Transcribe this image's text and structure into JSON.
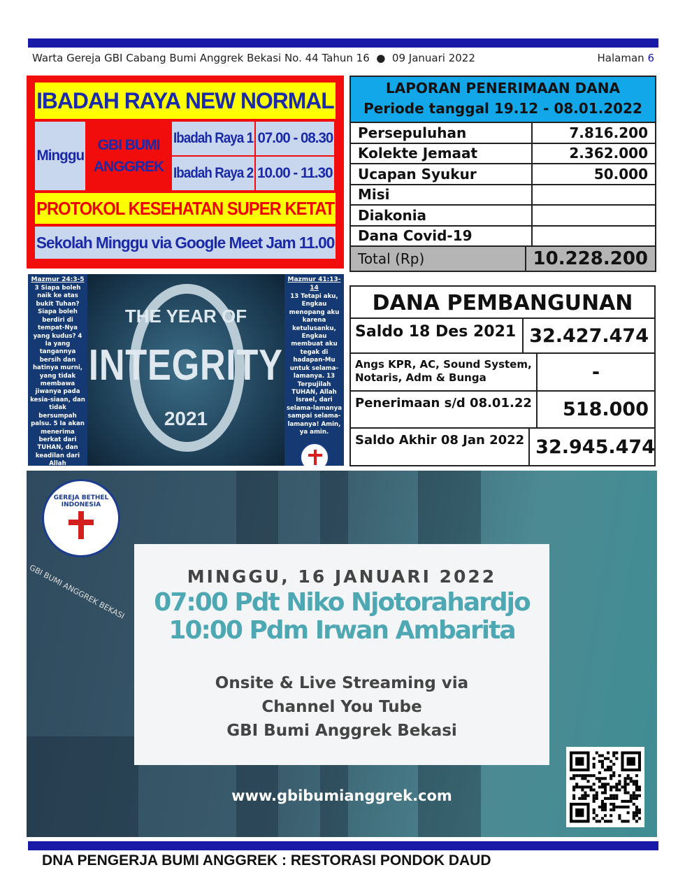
{
  "header": {
    "publication": "Warta Gereja GBI Cabang Bumi Anggrek Bekasi No. 44  Tahun 16",
    "bullet": "●",
    "date": "09 Januari 2022",
    "page_label": "Halaman",
    "page_number": "6"
  },
  "ibadah": {
    "title": "IBADAH RAYA NEW NORMAL",
    "day": "Minggu",
    "services": [
      {
        "name": "Ibadah Raya 1",
        "time": "07.00 - 08.30"
      },
      {
        "name": "Ibadah Raya 2",
        "time": "10.00 - 11.30"
      }
    ],
    "location": "GBI BUMI ANGGREK",
    "protocol": "PROTOKOL KESEHATAN SUPER KETAT",
    "sunday_school": "Sekolah Minggu via Google Meet Jam 11.00"
  },
  "laporan": {
    "title": "LAPORAN PENERIMAAN DANA",
    "period": "Periode tanggal 19.12 - 08.01.2022",
    "rows": [
      {
        "label": "Persepuluhan",
        "value": "7.816.200"
      },
      {
        "label": "Kolekte Jemaat",
        "value": "2.362.000"
      },
      {
        "label": "Ucapan Syukur",
        "value": "50.000"
      },
      {
        "label": "Misi",
        "value": ""
      },
      {
        "label": "Diakonia",
        "value": ""
      },
      {
        "label": "Dana Covid-19",
        "value": ""
      }
    ],
    "total_label": "Total (Rp)",
    "total_value": "10.228.200"
  },
  "integrity": {
    "verse_left_ref": "Mazmur 24:3-5",
    "verse_left": "3 Siapa boleh naik ke atas bukit Tuhan? Siapa boleh berdiri di tempat-Nya yang kudus? 4 Ia yang tangannya bersih dan hatinya murni, yang tidak membawa jiwanya pada kesia-siaan, dan tidak bersumpah palsu. 5 Ia akan menerima berkat dari TUHAN, dan keadilan dari Allah keselamatannya.",
    "year_of": "THE YEAR OF",
    "word": "INTEGRITY",
    "year": "2021",
    "verse_right_ref": "Mazmur 41:13-14",
    "verse_right": "13 Tetapi aku, Engkau menopang aku karena ketulusanku, Engkau membuat aku tegak di hadapan-Mu untuk selama-lamanya. 13 Terpujilah TUHAN, Allah Israel, dari selama-lamanya sampai selama-lamanya! Amin, ya amin.",
    "logo_text": "GEREJA BETHEL INDONESIA"
  },
  "dana": {
    "title": "DANA PEMBANGUNAN",
    "rows": [
      {
        "label": "Saldo 18 Des 2021",
        "value": "32.427.474"
      },
      {
        "label": "Angs KPR, AC, Sound System, Notaris, Adm & Bunga",
        "value": "-"
      },
      {
        "label": "Penerimaan s/d 08.01.22",
        "value": "518.000"
      },
      {
        "label": "Saldo Akhir 08 Jan 2022",
        "value": "32.945.474"
      }
    ]
  },
  "banner": {
    "logo_text": "GEREJA BETHEL INDONESIA",
    "logo_sub": "GBI BUMI ANGGREK BEKASI",
    "date": "MINGGU, 16 JANUARI 2022",
    "preachers": [
      "07:00 Pdt Niko Njotorahardjo",
      "10:00 Pdm Irwan Ambarita"
    ],
    "info": [
      "Onsite & Live Streaming via",
      "Channel You Tube",
      "GBI Bumi Anggrek Bekasi"
    ],
    "url": "www.gbibumianggrek.com"
  },
  "footer": "DNA PENGERJA BUMI ANGGREK : RESTORASI PONDOK DAUD",
  "colors": {
    "bar": "#1a1aa8",
    "red": "#f20d0d",
    "yellow": "#ffff00",
    "cyan": "#12a7e8",
    "teal": "#4ea8b3"
  }
}
